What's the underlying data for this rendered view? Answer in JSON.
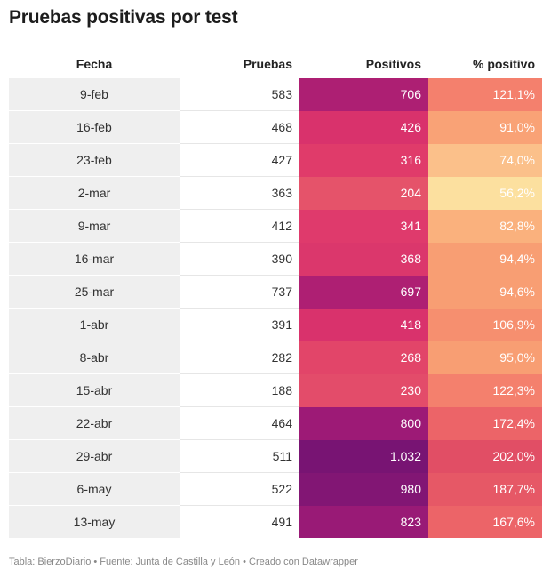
{
  "title": "Pruebas positivas por test",
  "source_line": "Tabla: BierzoDiario • Fuente: Junta de Castilla y León • Creado con Datawrapper",
  "chart_data": {
    "type": "table",
    "columns": [
      "Fecha",
      "Pruebas",
      "Positivos",
      "% positivo"
    ],
    "rows": [
      {
        "fecha": "9-feb",
        "pruebas": "583",
        "positivos": "706",
        "pct": "121,1%",
        "pos_color": "#ad1f73",
        "pct_color": "#f4806d"
      },
      {
        "fecha": "16-feb",
        "pruebas": "468",
        "positivos": "426",
        "pct": "91,0%",
        "pos_color": "#d9326c",
        "pct_color": "#f9a276"
      },
      {
        "fecha": "23-feb",
        "pruebas": "427",
        "positivos": "316",
        "pct": "74,0%",
        "pos_color": "#e03b6a",
        "pct_color": "#fbc08a"
      },
      {
        "fecha": "2-mar",
        "pruebas": "363",
        "positivos": "204",
        "pct": "56,2%",
        "pos_color": "#e5536a",
        "pct_color": "#fce09f"
      },
      {
        "fecha": "9-mar",
        "pruebas": "412",
        "positivos": "341",
        "pct": "82,8%",
        "pos_color": "#df3a6c",
        "pct_color": "#fab17d"
      },
      {
        "fecha": "16-mar",
        "pruebas": "390",
        "positivos": "368",
        "pct": "94,4%",
        "pos_color": "#db376c",
        "pct_color": "#f89e73"
      },
      {
        "fecha": "25-mar",
        "pruebas": "737",
        "positivos": "697",
        "pct": "94,6%",
        "pos_color": "#ae1f73",
        "pct_color": "#f89e73"
      },
      {
        "fecha": "1-abr",
        "pruebas": "391",
        "positivos": "418",
        "pct": "106,9%",
        "pos_color": "#d9326c",
        "pct_color": "#f68f6f"
      },
      {
        "fecha": "8-abr",
        "pruebas": "282",
        "positivos": "268",
        "pct": "95,0%",
        "pos_color": "#e24569",
        "pct_color": "#f89e73"
      },
      {
        "fecha": "15-abr",
        "pruebas": "188",
        "positivos": "230",
        "pct": "122,3%",
        "pos_color": "#e34c6a",
        "pct_color": "#f4806d"
      },
      {
        "fecha": "22-abr",
        "pruebas": "464",
        "positivos": "800",
        "pct": "172,4%",
        "pos_color": "#9d1a76",
        "pct_color": "#ec6468"
      },
      {
        "fecha": "29-abr",
        "pruebas": "511",
        "positivos": "1.032",
        "pct": "202,0%",
        "pos_color": "#781473",
        "pct_color": "#e14e65"
      },
      {
        "fecha": "6-may",
        "pruebas": "522",
        "positivos": "980",
        "pct": "187,7%",
        "pos_color": "#821674",
        "pct_color": "#e65866"
      },
      {
        "fecha": "13-may",
        "pruebas": "491",
        "positivos": "823",
        "pct": "167,6%",
        "pos_color": "#991a76",
        "pct_color": "#ec6468"
      }
    ]
  }
}
